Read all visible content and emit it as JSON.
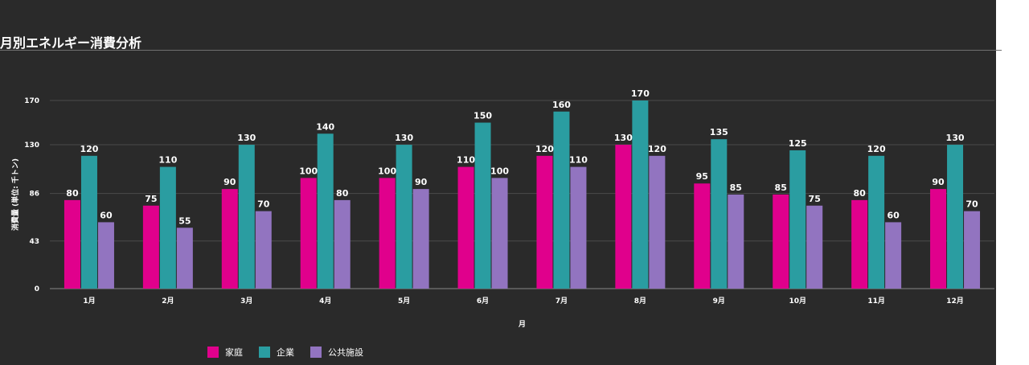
{
  "title": "月別エネルギー消費分析",
  "chart_data": {
    "type": "bar",
    "categories": [
      "1月",
      "2月",
      "3月",
      "4月",
      "5月",
      "6月",
      "7月",
      "8月",
      "9月",
      "10月",
      "11月",
      "12月"
    ],
    "series": [
      {
        "name": "家庭",
        "color": "#e0008c",
        "values": [
          80,
          75,
          90,
          100,
          100,
          110,
          120,
          130,
          95,
          85,
          80,
          90
        ]
      },
      {
        "name": "企業",
        "color": "#2a9da1",
        "values": [
          120,
          110,
          130,
          140,
          130,
          150,
          160,
          170,
          135,
          125,
          120,
          130
        ]
      },
      {
        "name": "公共施設",
        "color": "#9274c0",
        "values": [
          60,
          55,
          70,
          80,
          90,
          100,
          110,
          120,
          85,
          75,
          60,
          70
        ]
      }
    ],
    "yticks": [
      0,
      43,
      86,
      130,
      170
    ],
    "ylim": [
      0,
      170
    ],
    "xlabel": "月",
    "ylabel": "消費量 (単位: 千トン)",
    "grid": true,
    "legend": "bottom-left",
    "data_labels": true
  }
}
